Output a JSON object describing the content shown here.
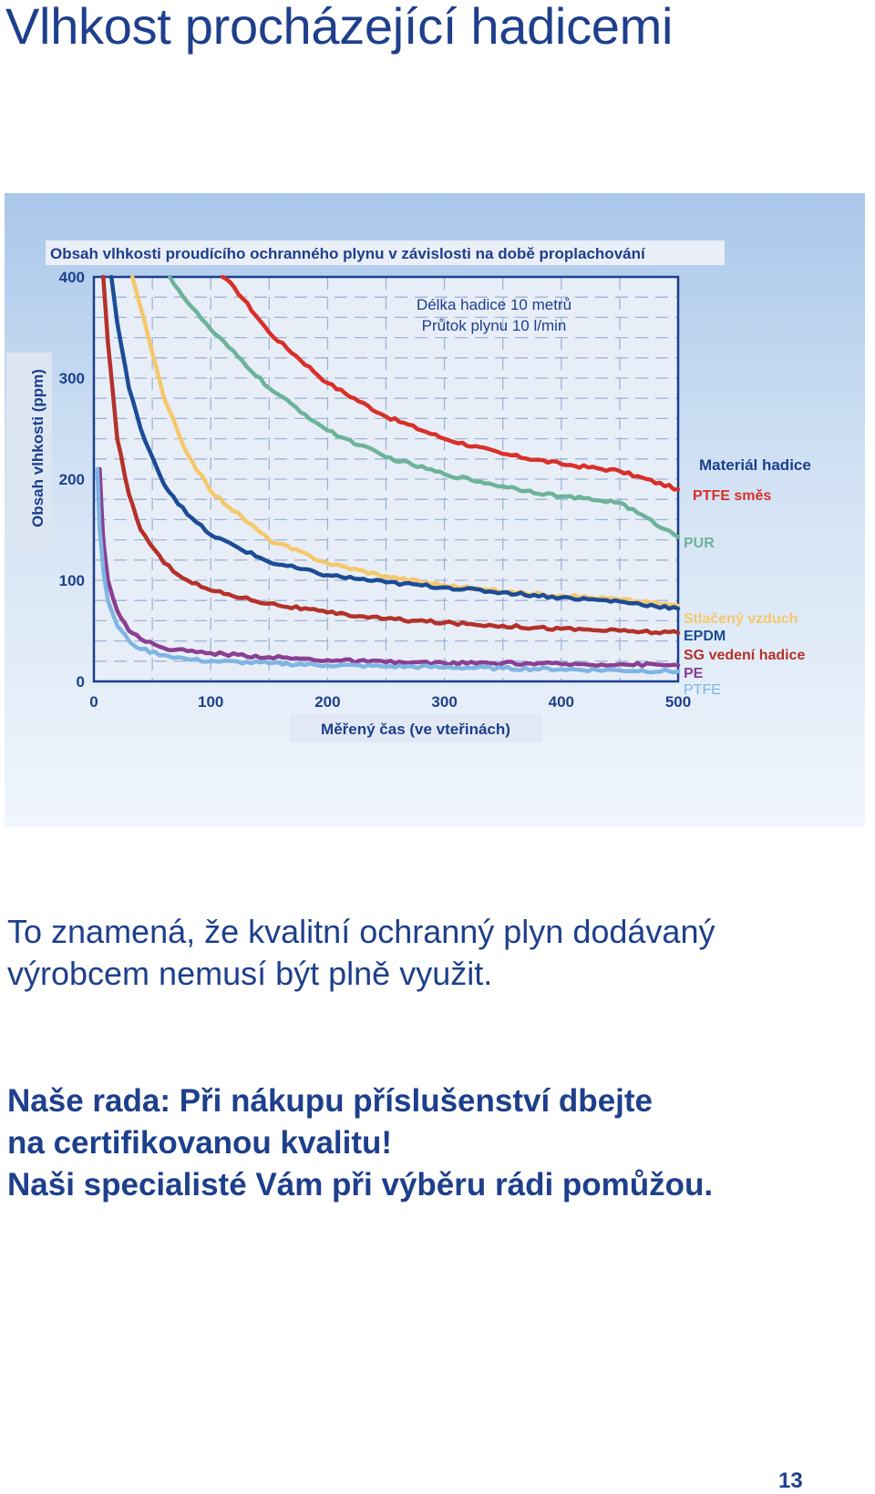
{
  "page": {
    "title": "Vlhkost procházející hadicemi",
    "note_lines": [
      "To znamená, že kvalitní ochranný plyn dodávaný",
      "výrobcem nemusí být plně využit."
    ],
    "advice_lines": [
      "Naše rada: Při nákupu příslušenství dbejte",
      "na certifikovanou kvalitu!",
      "Naši specialisté Vám při výběru rádi pomůžou."
    ],
    "page_number": "13"
  },
  "chart_data": {
    "type": "line",
    "title": "Obsah vlhkosti proudícího ochranného plynu v závislosti na době proplachování",
    "xlabel": "Měřený čas (ve vteřinách)",
    "ylabel": "Obsah vlhkosti (ppm)",
    "annotation_lines": [
      "Délka hadice 10 metrů",
      "Průtok plynu 10 l/min"
    ],
    "legend_title": "Materiál hadice",
    "legend_placement": "right",
    "xlim": [
      0,
      500
    ],
    "ylim": [
      0,
      400
    ],
    "x_ticks": [
      0,
      100,
      200,
      300,
      400,
      500
    ],
    "y_ticks": [
      0,
      100,
      200,
      300,
      400
    ],
    "grid": true,
    "series": [
      {
        "name": "PTFE směs",
        "color": "#d8302a",
        "x": [
          110,
          120,
          150,
          200,
          250,
          300,
          350,
          400,
          450,
          500
        ],
        "y": [
          400,
          390,
          345,
          295,
          262,
          240,
          225,
          215,
          208,
          190
        ]
      },
      {
        "name": "PUR",
        "color": "#6db39a",
        "x": [
          65,
          80,
          100,
          150,
          200,
          250,
          300,
          350,
          400,
          450,
          500
        ],
        "y": [
          400,
          375,
          348,
          290,
          248,
          222,
          205,
          193,
          183,
          177,
          143
        ]
      },
      {
        "name": "Stlačený vzduch",
        "color": "#f5c86c",
        "x": [
          33,
          40,
          50,
          60,
          80,
          100,
          150,
          200,
          250,
          300,
          350,
          400,
          450,
          500
        ],
        "y": [
          400,
          370,
          325,
          280,
          225,
          188,
          140,
          117,
          104,
          95,
          89,
          85,
          81,
          75
        ]
      },
      {
        "name": "EPDM",
        "color": "#1c4c96",
        "x": [
          15,
          20,
          30,
          40,
          60,
          80,
          100,
          150,
          200,
          250,
          300,
          350,
          400,
          450,
          500
        ],
        "y": [
          400,
          355,
          290,
          250,
          195,
          165,
          145,
          118,
          105,
          98,
          93,
          88,
          83,
          79,
          72
        ]
      },
      {
        "name": "SG vedení hadice",
        "color": "#b3322a",
        "x": [
          8,
          12,
          20,
          30,
          40,
          60,
          80,
          100,
          150,
          200,
          250,
          300,
          350,
          400,
          450,
          500
        ],
        "y": [
          400,
          335,
          240,
          185,
          150,
          117,
          100,
          90,
          77,
          68,
          62,
          58,
          55,
          52,
          50,
          48
        ]
      },
      {
        "name": "PE",
        "color": "#8a3f93",
        "x": [
          5,
          8,
          12,
          20,
          30,
          40,
          60,
          80,
          100,
          150,
          200,
          250,
          300,
          350,
          400,
          450,
          500
        ],
        "y": [
          210,
          140,
          100,
          70,
          50,
          42,
          33,
          30,
          28,
          24,
          21,
          19,
          18,
          18,
          17,
          17,
          16
        ]
      },
      {
        "name": "PTFE",
        "color": "#7fb5e3",
        "x": [
          3,
          5,
          8,
          12,
          20,
          30,
          40,
          60,
          80,
          100,
          150,
          200,
          250,
          300,
          350,
          400,
          450,
          500
        ],
        "y": [
          210,
          150,
          110,
          80,
          55,
          40,
          32,
          26,
          22,
          20,
          18,
          16,
          15,
          14,
          13,
          12,
          11,
          10
        ]
      }
    ]
  }
}
